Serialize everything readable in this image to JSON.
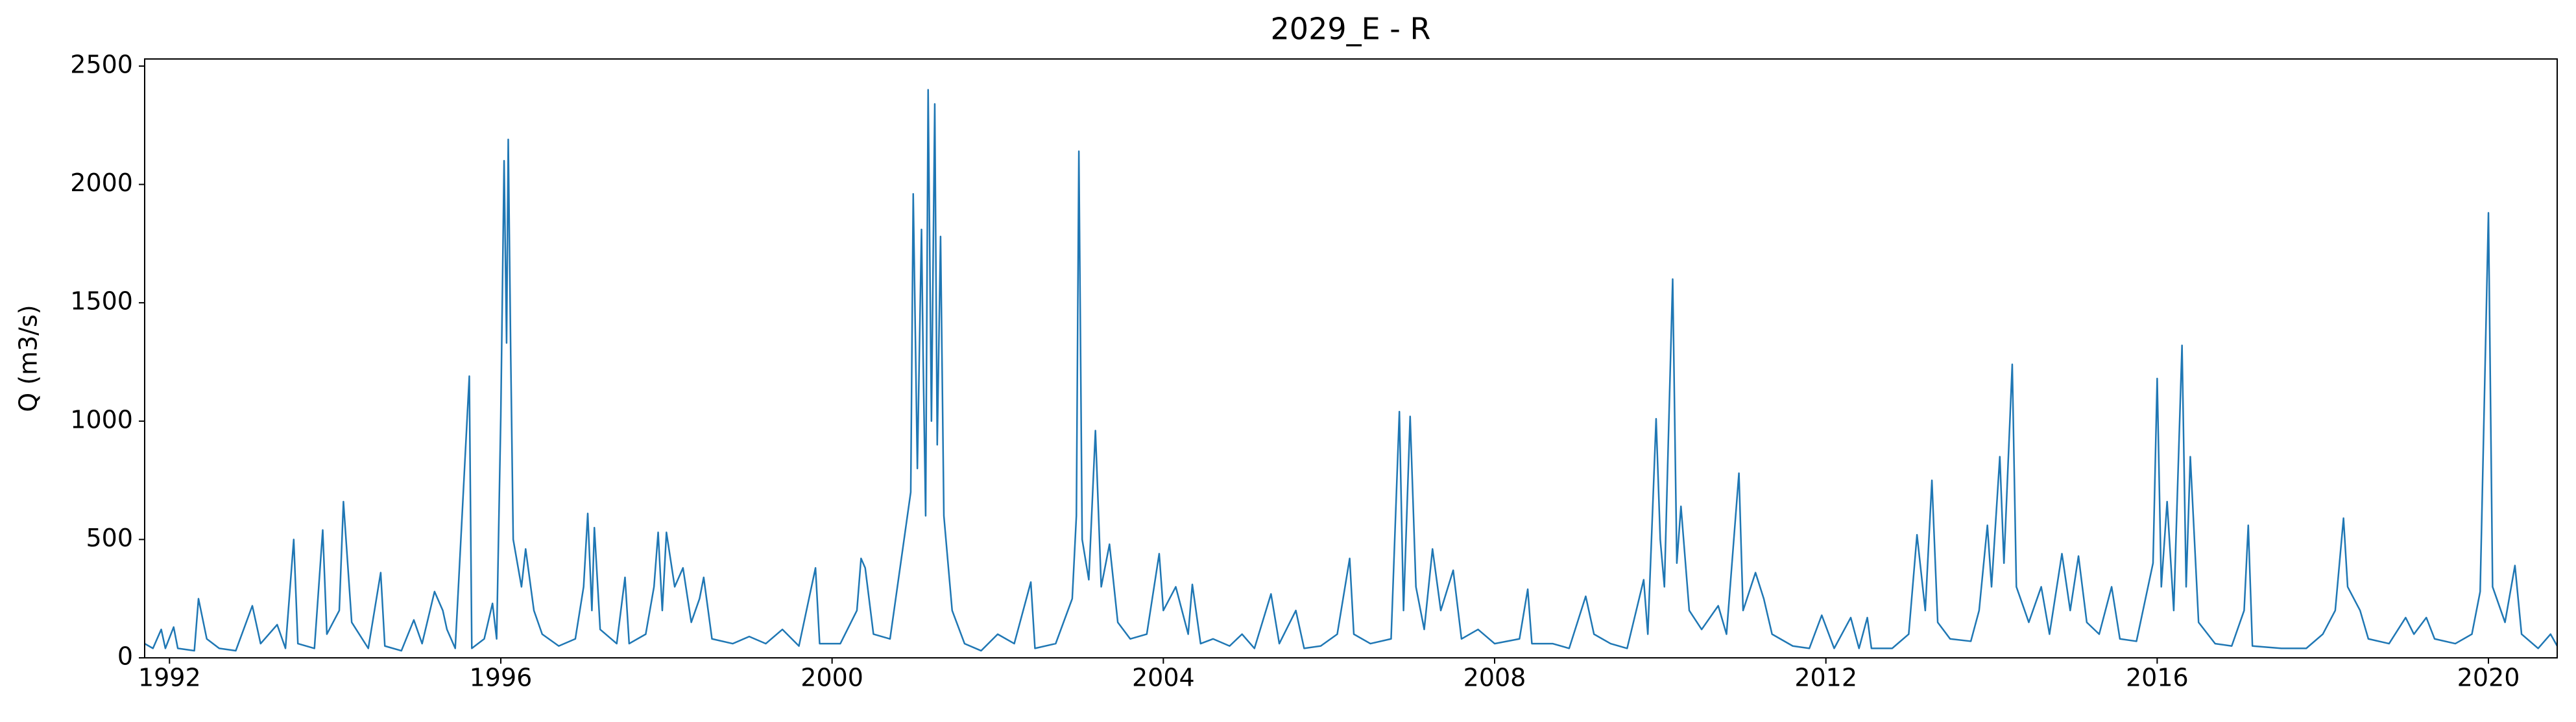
{
  "chart_data": {
    "type": "line",
    "title": "2029_E - R",
    "y_label": "Q (m3/s)",
    "color": "#1f77b4",
    "x": [
      1991.7,
      1991.8,
      1991.9,
      1991.95,
      1992.05,
      1992.1,
      1992.3,
      1992.35,
      1992.45,
      1992.6,
      1992.8,
      1993.0,
      1993.1,
      1993.3,
      1993.4,
      1993.5,
      1993.55,
      1993.75,
      1993.85,
      1993.9,
      1994.05,
      1994.1,
      1994.2,
      1994.4,
      1994.55,
      1994.6,
      1994.8,
      1994.95,
      1995.05,
      1995.2,
      1995.3,
      1995.35,
      1995.45,
      1995.62,
      1995.65,
      1995.8,
      1995.9,
      1995.95,
      1996.0,
      1996.04,
      1996.07,
      1996.09,
      1996.12,
      1996.15,
      1996.25,
      1996.3,
      1996.4,
      1996.5,
      1996.7,
      1996.9,
      1997.0,
      1997.05,
      1997.1,
      1997.13,
      1997.2,
      1997.4,
      1997.5,
      1997.55,
      1997.75,
      1997.85,
      1997.9,
      1997.95,
      1998.0,
      1998.1,
      1998.2,
      1998.3,
      1998.4,
      1998.45,
      1998.55,
      1998.8,
      1999.0,
      1999.2,
      1999.4,
      1999.6,
      1999.8,
      1999.85,
      2000.1,
      2000.3,
      2000.35,
      2000.4,
      2000.5,
      2000.7,
      2000.95,
      2000.98,
      2001.03,
      2001.08,
      2001.1,
      2001.13,
      2001.16,
      2001.2,
      2001.24,
      2001.27,
      2001.31,
      2001.35,
      2001.45,
      2001.6,
      2001.8,
      2002.0,
      2002.2,
      2002.4,
      2002.45,
      2002.7,
      2002.9,
      2002.95,
      2002.98,
      2003.02,
      2003.1,
      2003.18,
      2003.25,
      2003.35,
      2003.45,
      2003.6,
      2003.8,
      2003.95,
      2004.0,
      2004.15,
      2004.3,
      2004.35,
      2004.45,
      2004.6,
      2004.8,
      2004.95,
      2005.1,
      2005.3,
      2005.4,
      2005.6,
      2005.7,
      2005.9,
      2006.1,
      2006.25,
      2006.3,
      2006.5,
      2006.75,
      2006.85,
      2006.9,
      2006.98,
      2007.05,
      2007.15,
      2007.25,
      2007.35,
      2007.5,
      2007.6,
      2007.8,
      2008.0,
      2008.3,
      2008.4,
      2008.45,
      2008.7,
      2008.9,
      2009.1,
      2009.2,
      2009.4,
      2009.6,
      2009.8,
      2009.85,
      2009.95,
      2010.0,
      2010.05,
      2010.15,
      2010.2,
      2010.25,
      2010.35,
      2010.5,
      2010.7,
      2010.8,
      2010.95,
      2011.0,
      2011.15,
      2011.25,
      2011.35,
      2011.6,
      2011.8,
      2011.95,
      2012.1,
      2012.3,
      2012.4,
      2012.5,
      2012.55,
      2012.8,
      2013.0,
      2013.1,
      2013.2,
      2013.28,
      2013.35,
      2013.5,
      2013.75,
      2013.85,
      2013.95,
      2014.0,
      2014.1,
      2014.15,
      2014.25,
      2014.3,
      2014.45,
      2014.6,
      2014.7,
      2014.85,
      2014.95,
      2015.05,
      2015.15,
      2015.3,
      2015.45,
      2015.55,
      2015.75,
      2015.95,
      2016.0,
      2016.05,
      2016.12,
      2016.2,
      2016.3,
      2016.35,
      2016.4,
      2016.5,
      2016.7,
      2016.9,
      2017.05,
      2017.1,
      2017.15,
      2017.5,
      2017.8,
      2018.0,
      2018.15,
      2018.25,
      2018.3,
      2018.45,
      2018.55,
      2018.8,
      2019.0,
      2019.1,
      2019.25,
      2019.35,
      2019.6,
      2019.8,
      2019.9,
      2020.0,
      2020.05,
      2020.2,
      2020.32,
      2020.4,
      2020.6,
      2020.75,
      2020.83
    ],
    "values": [
      60,
      40,
      120,
      40,
      130,
      40,
      30,
      250,
      80,
      40,
      30,
      220,
      60,
      140,
      40,
      500,
      60,
      40,
      540,
      100,
      200,
      660,
      150,
      40,
      360,
      50,
      30,
      160,
      60,
      280,
      200,
      120,
      40,
      1190,
      40,
      80,
      230,
      80,
      1020,
      2100,
      1330,
      2190,
      1280,
      500,
      300,
      460,
      200,
      100,
      50,
      80,
      300,
      610,
      200,
      550,
      120,
      60,
      340,
      60,
      100,
      300,
      530,
      200,
      530,
      300,
      380,
      150,
      250,
      340,
      80,
      60,
      90,
      60,
      120,
      50,
      380,
      60,
      60,
      200,
      420,
      380,
      100,
      80,
      700,
      1960,
      800,
      1810,
      1260,
      600,
      2400,
      1000,
      2340,
      900,
      1780,
      600,
      200,
      60,
      30,
      100,
      60,
      320,
      40,
      60,
      250,
      600,
      2140,
      500,
      330,
      960,
      300,
      480,
      150,
      80,
      100,
      440,
      200,
      300,
      100,
      310,
      60,
      80,
      50,
      100,
      40,
      270,
      60,
      200,
      40,
      50,
      100,
      420,
      100,
      60,
      80,
      1040,
      200,
      1020,
      300,
      120,
      460,
      200,
      370,
      80,
      120,
      60,
      80,
      290,
      60,
      60,
      40,
      260,
      100,
      60,
      40,
      330,
      100,
      1010,
      500,
      300,
      1600,
      400,
      640,
      200,
      120,
      220,
      100,
      780,
      200,
      360,
      250,
      100,
      50,
      40,
      180,
      40,
      170,
      40,
      170,
      40,
      40,
      100,
      520,
      200,
      750,
      150,
      80,
      70,
      200,
      560,
      300,
      850,
      400,
      1240,
      300,
      150,
      300,
      100,
      440,
      200,
      430,
      150,
      100,
      300,
      80,
      70,
      400,
      1180,
      300,
      660,
      200,
      1320,
      300,
      850,
      150,
      60,
      50,
      200,
      560,
      50,
      40,
      40,
      100,
      200,
      590,
      300,
      200,
      80,
      60,
      170,
      100,
      170,
      80,
      60,
      100,
      280,
      1880,
      300,
      150,
      390,
      100,
      40,
      100,
      50
    ],
    "xlim": [
      1991.7,
      2020.83
    ],
    "ylim": [
      0,
      2530
    ],
    "xticks": [
      1992,
      1996,
      2000,
      2004,
      2008,
      2012,
      2016,
      2020
    ],
    "yticks": [
      0,
      500,
      1000,
      1500,
      2000,
      2500
    ]
  }
}
